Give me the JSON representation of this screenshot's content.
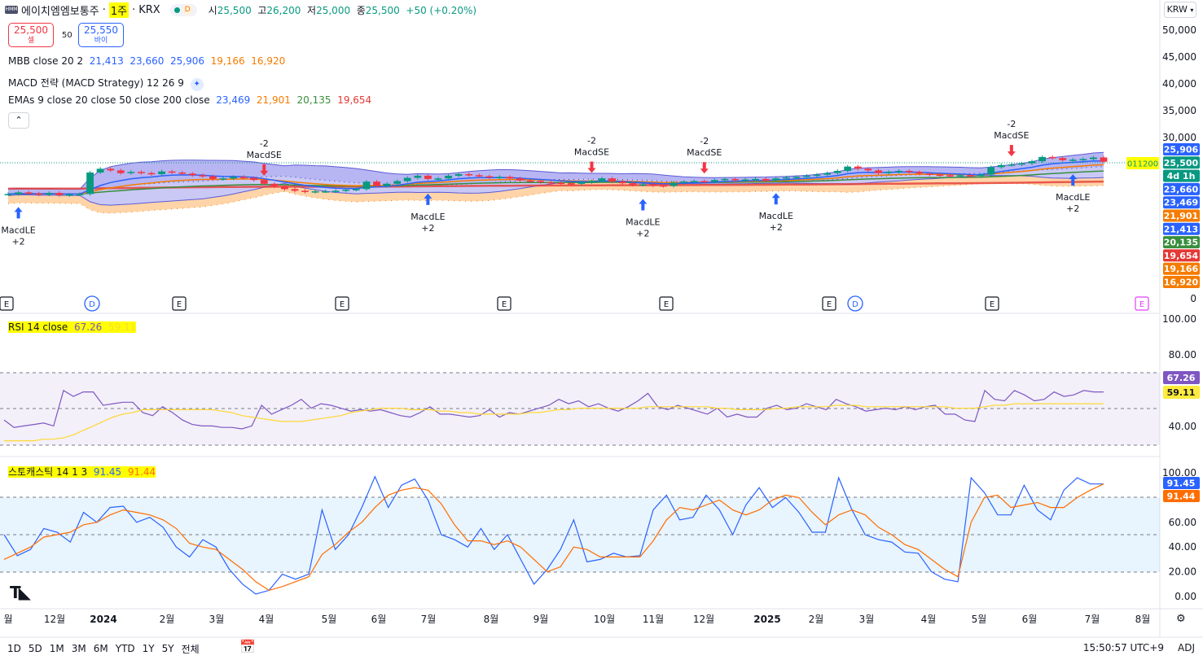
{
  "header": {
    "symbol_name": "에이치엠엠보통주",
    "timeframe": "1주",
    "exchange": "KRX",
    "d_badge": "D",
    "open_label": "시",
    "open": "25,500",
    "high_label": "고",
    "high": "26,200",
    "low_label": "저",
    "low": "25,000",
    "close_label": "종",
    "close": "25,500",
    "change": "+50 (+0.20%)",
    "currency": "KRW"
  },
  "trade": {
    "sell_price": "25,500",
    "sell_label": "셀",
    "spread": "50",
    "buy_price": "25,550",
    "buy_label": "바이"
  },
  "indicators": {
    "mbb_label": "MBB close 20 2",
    "mbb_values": [
      "21,413",
      "23,660",
      "25,906",
      "19,166",
      "16,920"
    ],
    "macd_label": "MACD 전략 (MACD Strategy) 12 26 9",
    "ema_label": "EMAs 9 close 20 close 50 close 200 close",
    "ema_values": [
      "23,469",
      "21,901",
      "20,135",
      "19,654"
    ],
    "rsi_label": "RSI 14 close",
    "rsi_values": [
      "67.26",
      "59.11"
    ],
    "stoch_label": "스토캐스틱 14 1 3",
    "stoch_values": [
      "91.45",
      "91.44"
    ]
  },
  "colors": {
    "up": "#089981",
    "down": "#f23645",
    "blue": "#2962ff",
    "orange": "#f57c00",
    "green": "#388e3c",
    "red": "#e53935",
    "rsi": "#7e57c2",
    "rsi_ma": "#fdd835",
    "stoch_k": "#2962ff",
    "stoch_d": "#ff6d00",
    "bb_fill": "#7b79e8",
    "bb_lower_fill": "#ffcc99"
  },
  "price_axis": {
    "ticks": [
      "50,000",
      "45,000",
      "40,000",
      "35,000",
      "30,000",
      "0"
    ],
    "badges": [
      {
        "text": "25,906",
        "color": "#2962ff"
      },
      {
        "text": "25,500",
        "color": "#089981"
      },
      {
        "text": "4d 1h",
        "color": "#089981"
      },
      {
        "text": "23,660",
        "color": "#2962ff"
      },
      {
        "text": "23,469",
        "color": "#2962ff"
      },
      {
        "text": "21,901",
        "color": "#f57c00"
      },
      {
        "text": "21,413",
        "color": "#2962ff"
      },
      {
        "text": "20,135",
        "color": "#388e3c"
      },
      {
        "text": "19,654",
        "color": "#e53935"
      },
      {
        "text": "19,166",
        "color": "#f57c00"
      },
      {
        "text": "16,920",
        "color": "#f57c00"
      }
    ],
    "countdown_tag": "011200"
  },
  "rsi_axis": {
    "ticks": [
      "100.00",
      "80.00",
      "40.00"
    ],
    "badges": [
      "67.26",
      "59.11"
    ]
  },
  "stoch_axis": {
    "ticks": [
      "100.00",
      "60.00",
      "40.00",
      "20.00",
      "0.00"
    ],
    "badges": [
      "91.45",
      "91.44"
    ]
  },
  "time_axis": [
    "월",
    "12월",
    "2024",
    "2월",
    "3월",
    "4월",
    "5월",
    "6월",
    "7월",
    "8월",
    "9월",
    "10월",
    "11월",
    "12월",
    "2025",
    "2월",
    "3월",
    "4월",
    "5월",
    "6월",
    "7월",
    "8월"
  ],
  "event_markers": [
    "E",
    "D",
    "E",
    "E",
    "E",
    "E",
    "E",
    "D",
    "E",
    "E"
  ],
  "bottom_bar": {
    "ranges": [
      "1D",
      "5D",
      "1M",
      "3M",
      "6M",
      "YTD",
      "1Y",
      "5Y",
      "전체"
    ],
    "time": "15:50:57 UTC+9",
    "adj": "ADJ"
  },
  "chart_data": [
    {
      "type": "candlestick",
      "title": "에이치엠엠보통주 · 1주 · KRX",
      "ylabel": "KRW",
      "ylim": [
        0,
        52000
      ],
      "close_series": [
        19500,
        19800,
        19600,
        19400,
        19700,
        19300,
        19400,
        19500,
        23500,
        24200,
        23900,
        23400,
        23600,
        23400,
        23200,
        23700,
        23500,
        23300,
        23000,
        22800,
        22300,
        22400,
        22700,
        22500,
        22100,
        21400,
        20900,
        20400,
        20100,
        19900,
        20000,
        20000,
        20100,
        20300,
        20400,
        21800,
        21000,
        21400,
        21900,
        22500,
        22900,
        22300,
        22400,
        22900,
        23200,
        23000,
        22800,
        22600,
        22700,
        22400,
        22000,
        21900,
        21700,
        21600,
        21500,
        21400,
        21700,
        21900,
        22400,
        21800,
        21500,
        21200,
        21300,
        21100,
        21000,
        21600,
        21800,
        21900,
        21800,
        22100,
        22300,
        22100,
        22200,
        22300,
        22000,
        22400,
        22600,
        22700,
        22900,
        23100,
        23400,
        23800,
        24600,
        24200,
        23900,
        23400,
        23600,
        23800,
        23600,
        23300,
        23100,
        23000,
        22900,
        23000,
        22800,
        23100,
        24500,
        24900,
        25000,
        25200,
        25600,
        26400,
        26200,
        25800,
        25900,
        26000,
        26300,
        25500
      ],
      "signals": [
        {
          "label": "MacdLE",
          "qty": "+2",
          "side": "long"
        },
        {
          "label": "MacdSE",
          "qty": "-2",
          "side": "short"
        },
        {
          "label": "MacdLE",
          "qty": "+2",
          "side": "long"
        },
        {
          "label": "MacdSE",
          "qty": "-2",
          "side": "short"
        },
        {
          "label": "MacdLE",
          "qty": "+2",
          "side": "long"
        },
        {
          "label": "MacdSE",
          "qty": "-2",
          "side": "short"
        },
        {
          "label": "MacdLE",
          "qty": "+2",
          "side": "long"
        },
        {
          "label": "MacdSE",
          "qty": "-2",
          "side": "short"
        },
        {
          "label": "MacdLE",
          "qty": "+2",
          "side": "long"
        }
      ]
    },
    {
      "type": "line",
      "title": "RSI 14 close",
      "ylim": [
        20,
        100
      ],
      "series": [
        {
          "name": "RSI",
          "values": [
            48,
            43,
            44,
            45,
            46,
            44,
            68,
            64,
            67,
            67,
            58,
            59,
            60,
            60,
            53,
            51,
            57,
            53,
            48,
            45,
            44,
            44,
            43,
            43,
            42,
            44,
            58,
            52,
            55,
            58,
            62,
            56,
            59,
            58,
            56,
            54,
            55,
            54,
            55,
            53,
            51,
            50,
            53,
            57,
            52,
            52,
            51,
            50,
            51,
            55,
            50,
            53,
            52,
            54,
            56,
            58,
            62,
            59,
            61,
            57,
            59,
            56,
            54,
            57,
            61,
            66,
            57,
            55,
            58,
            56,
            54,
            52,
            56,
            50,
            52,
            50,
            50,
            56,
            58,
            55,
            56,
            59,
            57,
            55,
            62,
            59,
            57,
            54,
            55,
            56,
            55,
            57,
            55,
            57,
            58,
            52,
            52,
            48,
            47,
            68,
            62,
            61,
            68,
            65,
            61,
            62,
            67,
            64,
            65,
            68,
            67,
            67
          ]
        },
        {
          "name": "RSI MA",
          "values": [
            34,
            34,
            34,
            34,
            35,
            35,
            36,
            38,
            41,
            44,
            47,
            50,
            52,
            53,
            55,
            55,
            55,
            55,
            55,
            55,
            55,
            55,
            54,
            53,
            51,
            50,
            49,
            48,
            47,
            47,
            47,
            48,
            49,
            50,
            51,
            53,
            54,
            55,
            56,
            56,
            56,
            55,
            55,
            55,
            54,
            54,
            53,
            53,
            52,
            52,
            52,
            52,
            52,
            53,
            53,
            54,
            55,
            55,
            56,
            56,
            56,
            56,
            56,
            56,
            56,
            57,
            57,
            57,
            57,
            57,
            57,
            57,
            56,
            56,
            55,
            55,
            55,
            55,
            56,
            56,
            57,
            57,
            57,
            57,
            58,
            58,
            58,
            57,
            57,
            57,
            57,
            57,
            57,
            57,
            57,
            57,
            56,
            56,
            56,
            57,
            58,
            58,
            59,
            59,
            59,
            59,
            59,
            59,
            59,
            59,
            59,
            59
          ]
        }
      ]
    },
    {
      "type": "line",
      "title": "스토캐스틱 14 1 3",
      "ylim": [
        -5,
        105
      ],
      "series": [
        {
          "name": "%K",
          "values": [
            50,
            33,
            38,
            55,
            52,
            44,
            68,
            60,
            72,
            73,
            60,
            64,
            56,
            40,
            32,
            46,
            40,
            22,
            10,
            2,
            5,
            18,
            14,
            18,
            70,
            38,
            50,
            72,
            97,
            72,
            90,
            95,
            78,
            50,
            46,
            40,
            55,
            38,
            50,
            30,
            10,
            22,
            38,
            62,
            28,
            30,
            35,
            32,
            33,
            70,
            82,
            62,
            64,
            82,
            70,
            50,
            74,
            88,
            72,
            80,
            68,
            52,
            52,
            96,
            70,
            50,
            46,
            44,
            36,
            35,
            20,
            14,
            12,
            96,
            84,
            66,
            66,
            90,
            70,
            62,
            86,
            96,
            91,
            91
          ]
        },
        {
          "name": "%D",
          "values": [
            30,
            35,
            40,
            48,
            50,
            52,
            58,
            60,
            66,
            70,
            68,
            66,
            62,
            55,
            43,
            40,
            38,
            30,
            22,
            12,
            5,
            8,
            12,
            16,
            34,
            42,
            52,
            60,
            72,
            82,
            86,
            88,
            86,
            75,
            58,
            45,
            45,
            42,
            45,
            40,
            30,
            20,
            24,
            40,
            38,
            32,
            32,
            32,
            32,
            45,
            62,
            72,
            70,
            74,
            78,
            70,
            66,
            70,
            78,
            82,
            80,
            68,
            58,
            66,
            70,
            66,
            56,
            50,
            42,
            38,
            30,
            22,
            16,
            60,
            80,
            82,
            72,
            74,
            76,
            72,
            72,
            80,
            86,
            91
          ]
        }
      ]
    }
  ]
}
